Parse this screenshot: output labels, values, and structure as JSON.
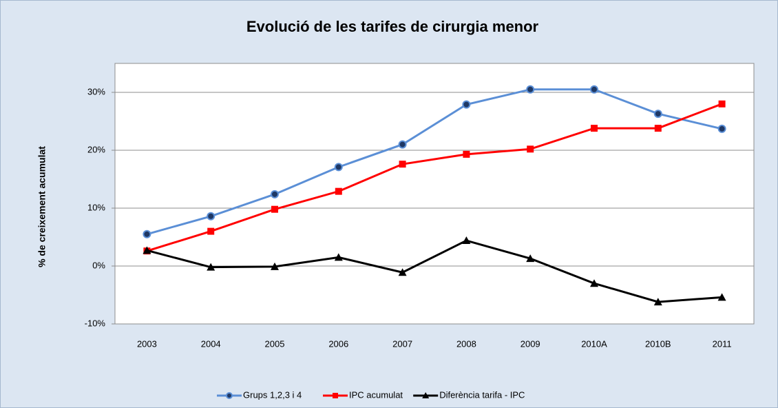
{
  "chart_data": {
    "type": "line",
    "title": "Evolució de les tarifes de cirurgia menor",
    "y_label": "% de creixement acumulat",
    "categories": [
      "2003",
      "2004",
      "2005",
      "2006",
      "2007",
      "2008",
      "2009",
      "2010A",
      "2010B",
      "2011"
    ],
    "series": [
      {
        "name": "Grups 1,2,3 i 4",
        "color": "#5b8fd6",
        "marker": "circle",
        "values": [
          5.5,
          8.6,
          12.4,
          17.1,
          21.0,
          27.9,
          30.5,
          30.5,
          26.3,
          23.7
        ]
      },
      {
        "name": "IPC acumulat",
        "color": "#ff0000",
        "marker": "square",
        "values": [
          2.6,
          6.0,
          9.8,
          12.9,
          17.6,
          19.3,
          20.2,
          23.8,
          23.8,
          28.0
        ]
      },
      {
        "name": "Diferència tarifa - IPC",
        "color": "#000000",
        "marker": "triangle",
        "values": [
          2.7,
          -0.2,
          -0.1,
          1.5,
          -1.1,
          4.4,
          1.3,
          -3.0,
          -6.2,
          -5.4
        ]
      }
    ],
    "ylim": [
      -10,
      35
    ],
    "yticks": [
      {
        "value": -10,
        "label": "-10%"
      },
      {
        "value": 0,
        "label": "0%"
      },
      {
        "value": 10,
        "label": "10%"
      },
      {
        "value": 20,
        "label": "20%"
      },
      {
        "value": 30,
        "label": "30%"
      }
    ],
    "grid": true,
    "legend": "bottom"
  }
}
